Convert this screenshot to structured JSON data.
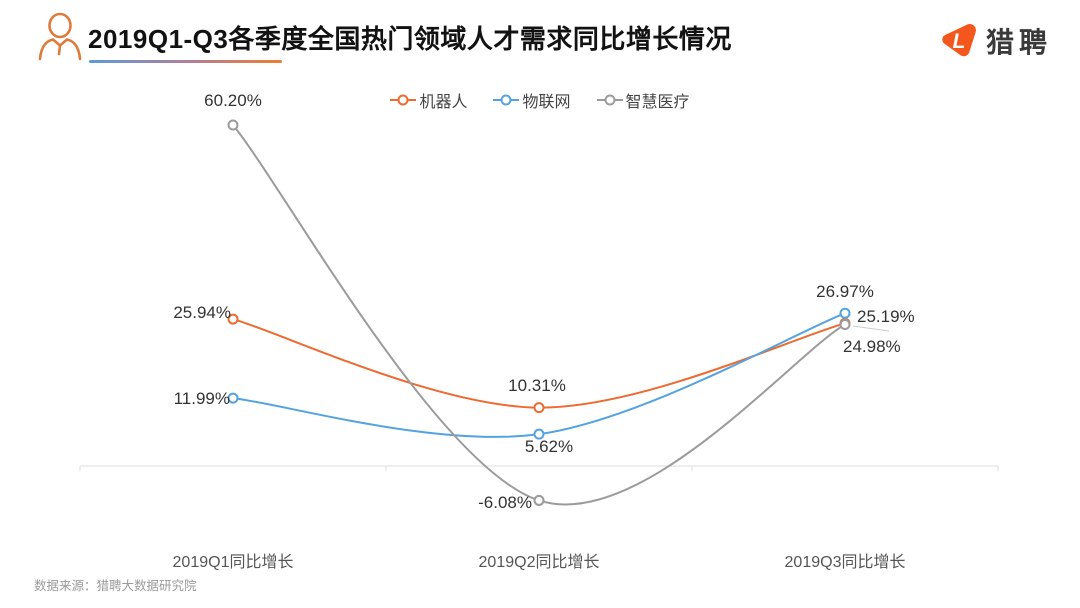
{
  "header": {
    "title": "2019Q1-Q3各季度全国热门领域人才需求同比增长情况",
    "brand": {
      "logo_letter": "L",
      "logo_text": "猎聘",
      "logo_color": "#f4571d"
    }
  },
  "chart_data": {
    "type": "line",
    "title": "2019Q1-Q3各季度全国热门领域人才需求同比增长情况",
    "categories": [
      "2019Q1同比增长",
      "2019Q2同比增长",
      "2019Q3同比增长"
    ],
    "series": [
      {
        "name": "机器人",
        "color": "#ed6a30",
        "values": [
          25.94,
          10.31,
          25.19
        ],
        "labels": [
          "25.94%",
          "10.31%",
          "25.19%"
        ]
      },
      {
        "name": "物联网",
        "color": "#54a3e0",
        "values": [
          11.99,
          5.62,
          26.97
        ],
        "labels": [
          "11.99%",
          "5.62%",
          "26.97%"
        ]
      },
      {
        "name": "智慧医疗",
        "color": "#9b9b9b",
        "values": [
          60.2,
          -6.08,
          24.98
        ],
        "labels": [
          "60.20%",
          "-6.08%",
          "24.98%"
        ]
      }
    ],
    "ylabel": "",
    "xlabel": "",
    "ylim": [
      -20,
      70
    ],
    "grid": false,
    "legend_position": "top",
    "marker": "hollow-circle",
    "baseline_color": "#dddddd"
  },
  "footer": {
    "source": "数据来源：猎聘大数据研究院"
  }
}
